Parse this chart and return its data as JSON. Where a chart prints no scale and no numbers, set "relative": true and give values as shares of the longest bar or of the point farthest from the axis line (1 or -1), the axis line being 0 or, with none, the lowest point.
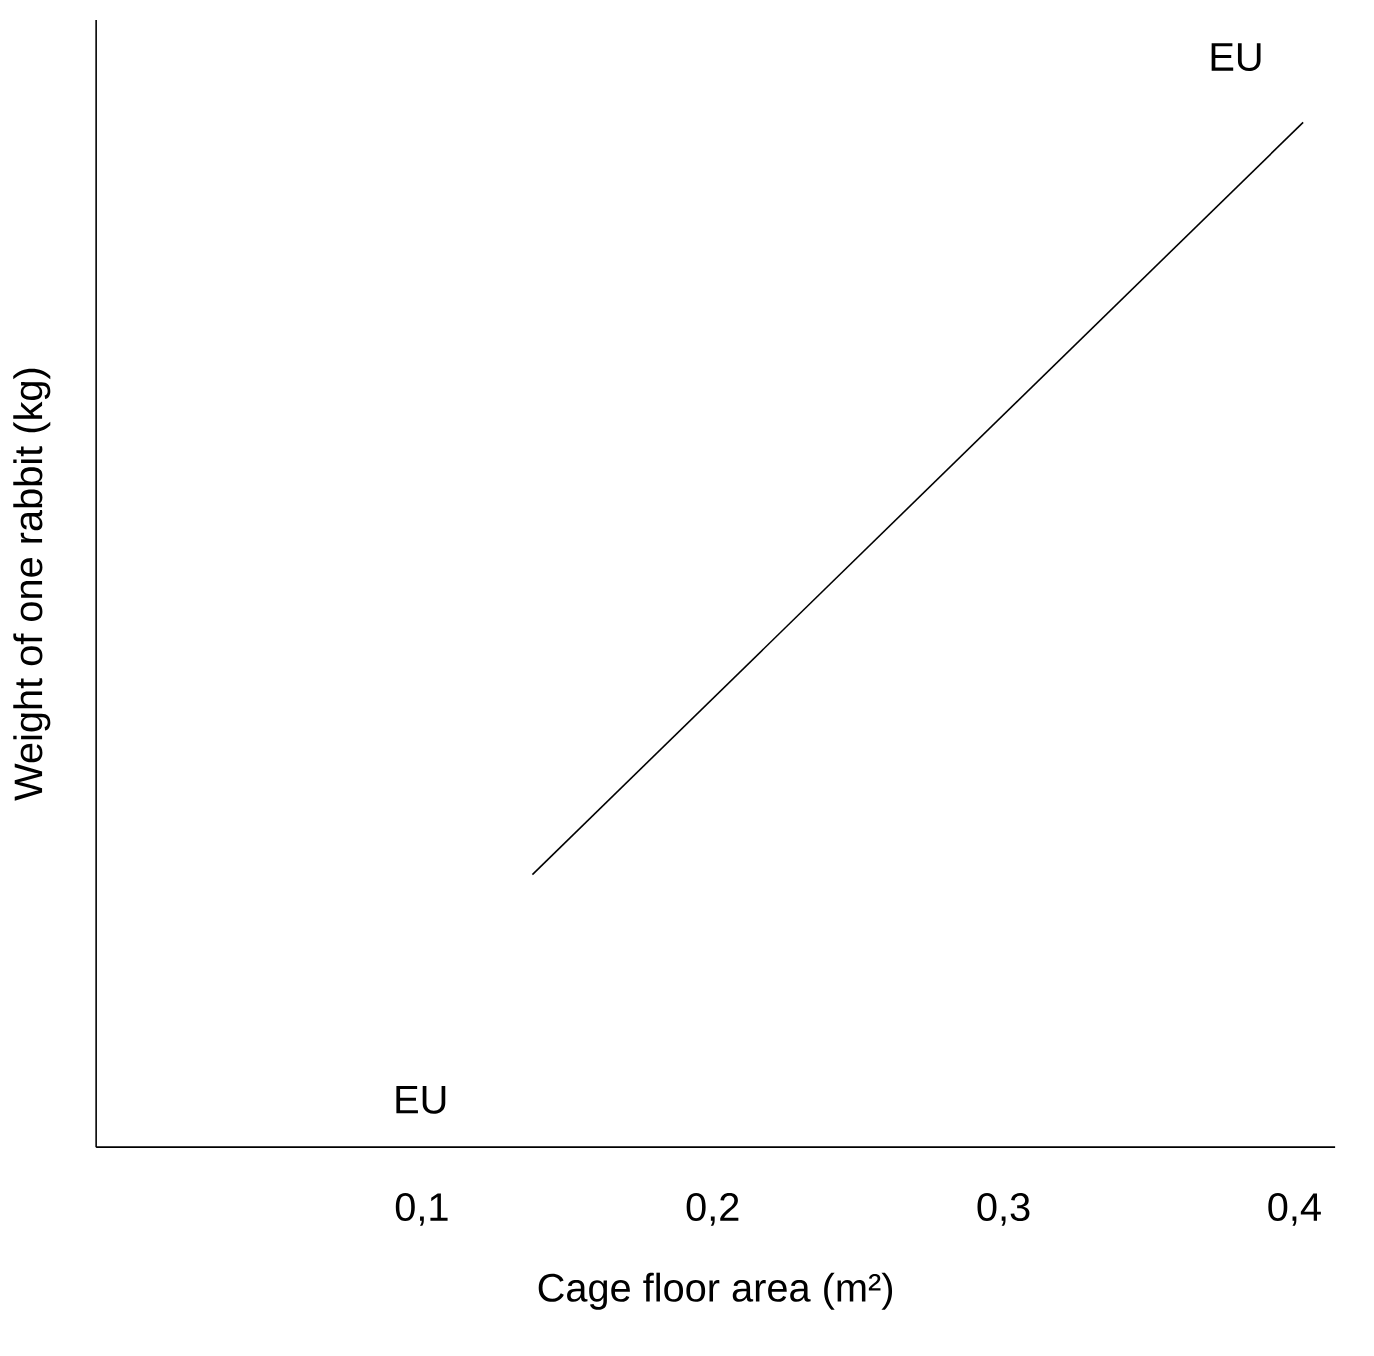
{
  "chart_data": {
    "type": "line",
    "relative": true,
    "xlabel": "Cage floor area (m²)",
    "ylabel": "Weight of one rabbit (kg)",
    "x": [
      0.138,
      0.403
    ],
    "values": [
      0.266,
      1
    ],
    "color": "#000000",
    "xlim": [
      -0.012,
      0.414
    ],
    "xticks": [
      {
        "value": 0.1,
        "label": "0,1"
      },
      {
        "value": 0.2,
        "label": "0,2"
      },
      {
        "value": 0.3,
        "label": "0,3"
      },
      {
        "value": 0.4,
        "label": "0,4"
      }
    ],
    "tick_labels": "x",
    "grid": false,
    "marker": "none",
    "line_style": "solid",
    "annotations": [
      "EU",
      "EU"
    ]
  }
}
